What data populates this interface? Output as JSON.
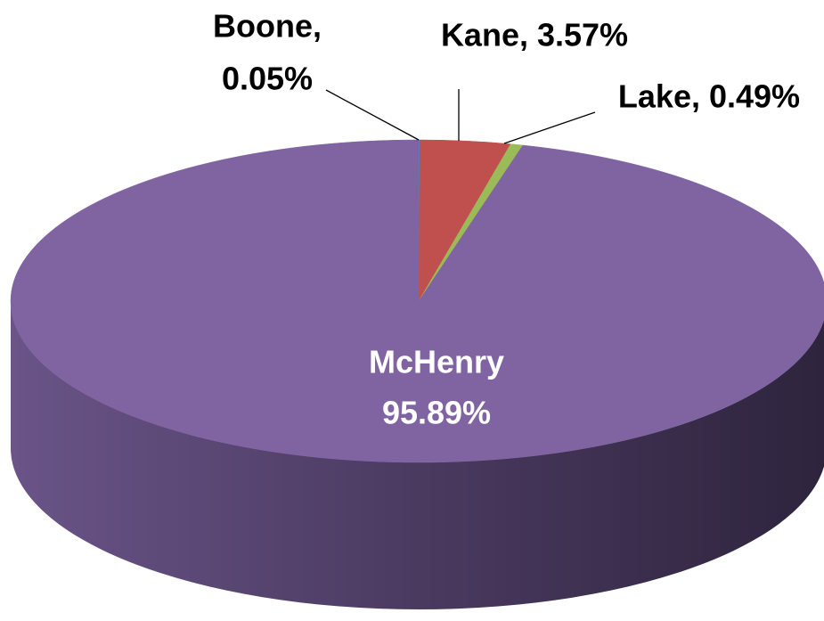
{
  "chart_data": {
    "type": "pie",
    "style": "3d",
    "values": [
      0.05,
      3.57,
      0.49,
      95.89
    ],
    "value_labels": [
      [
        "Boone,",
        "0.05%"
      ],
      [
        "Kane, 3.57%"
      ],
      [
        "Lake, 0.49%"
      ],
      [
        "McHenry",
        "95.89%"
      ]
    ],
    "colors": [
      "#4f81bd",
      "#c0504d",
      "#9bbb59",
      "#8064a2"
    ]
  }
}
